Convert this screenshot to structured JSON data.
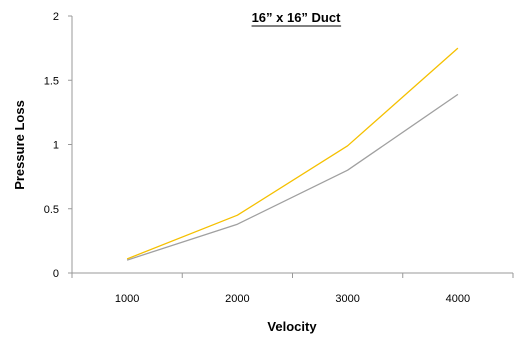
{
  "chart_data": {
    "type": "line",
    "title": "16” x 16” Duct",
    "xlabel": "Velocity",
    "ylabel": "Pressure Loss",
    "categories": [
      "1000",
      "2000",
      "3000",
      "4000"
    ],
    "ylim": [
      0,
      2
    ],
    "yticks": [
      "0",
      "0.5",
      "1",
      "1.5",
      "2"
    ],
    "grid": false,
    "legend": "none",
    "series": [
      {
        "values": [
          0.11,
          0.45,
          0.99,
          1.75
        ],
        "color": "#f5c000"
      },
      {
        "values": [
          0.1,
          0.38,
          0.8,
          1.39
        ],
        "color": "#a0a0a0"
      }
    ]
  }
}
